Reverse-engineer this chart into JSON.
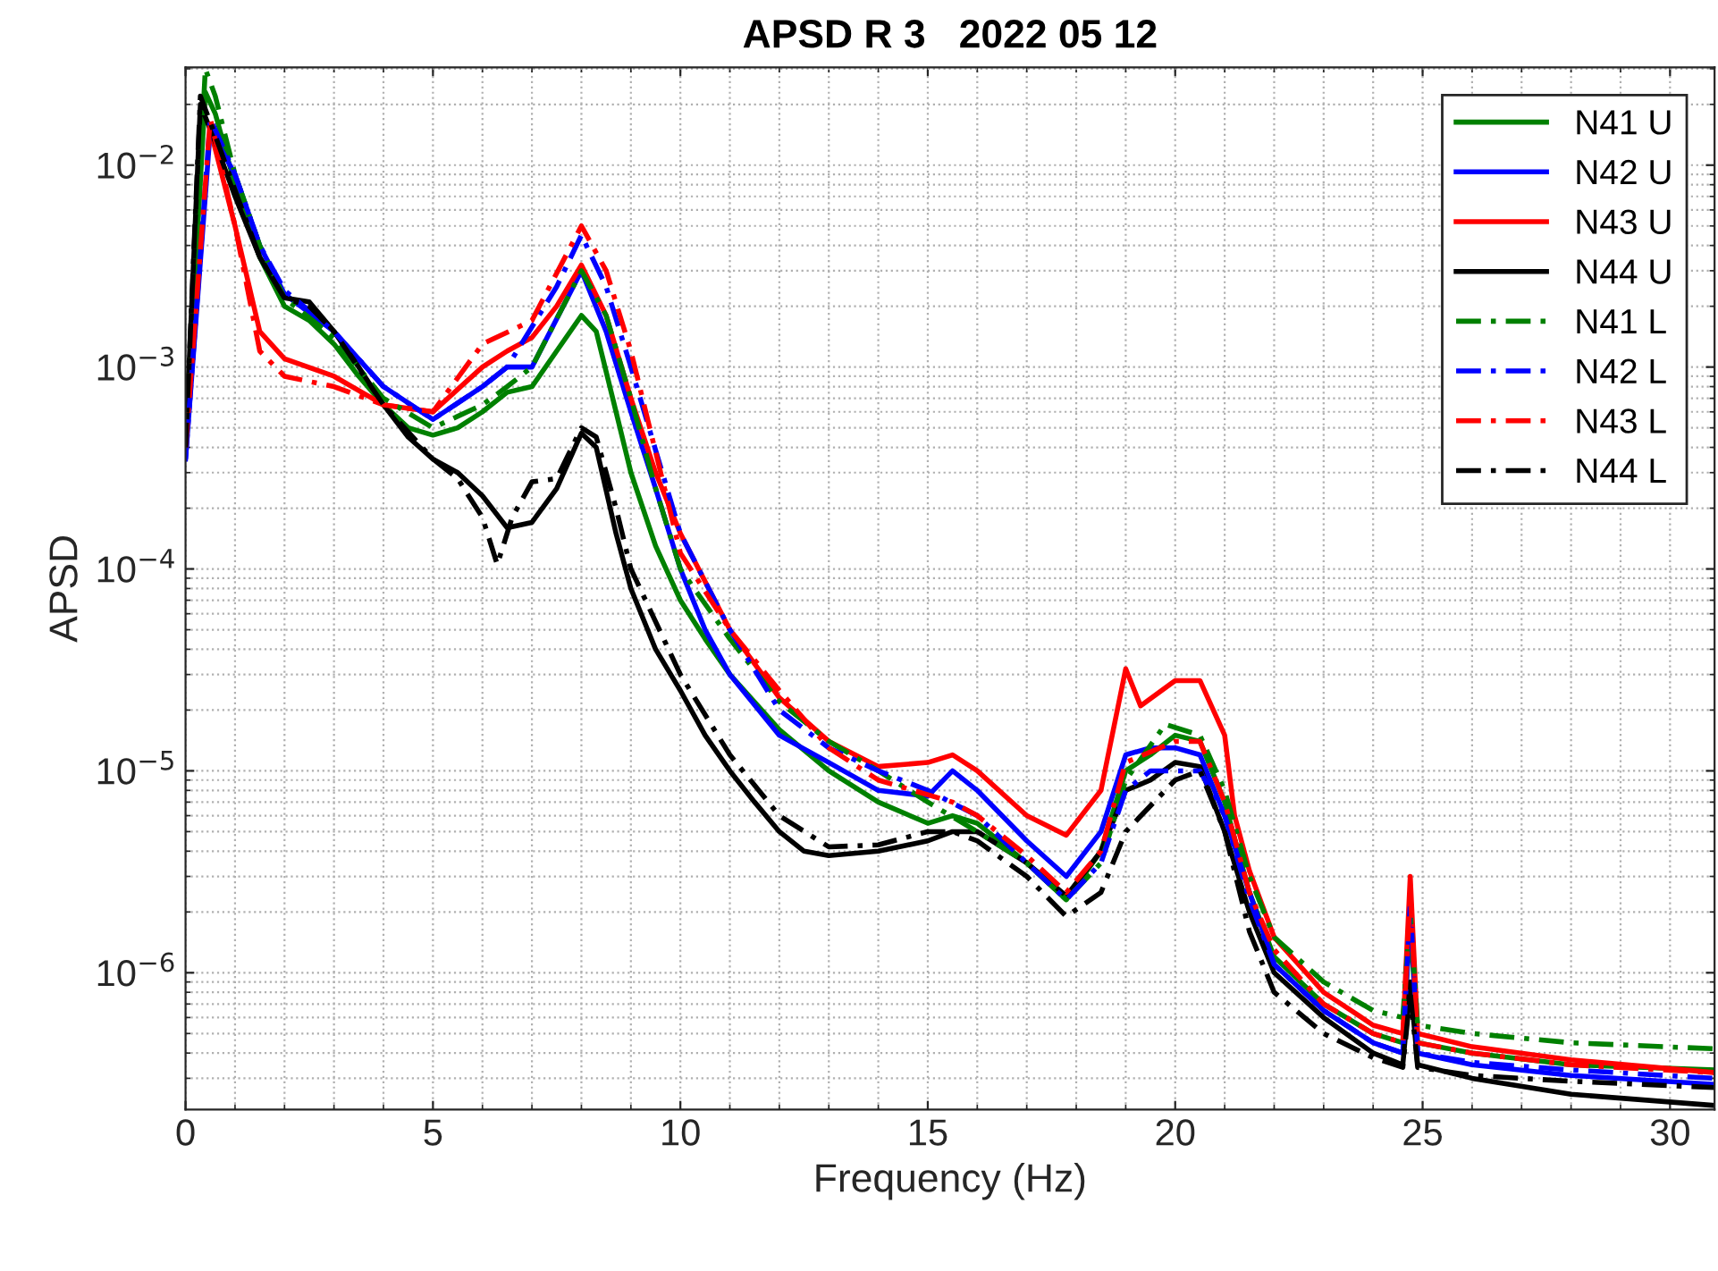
{
  "chart_data": {
    "type": "line",
    "title": "APSD R 3   2022 05 12",
    "xlabel": "Frequency (Hz)",
    "ylabel": "APSD",
    "log": "y",
    "xlim": [
      0,
      30.9
    ],
    "xticks": [
      0,
      5,
      10,
      15,
      20,
      25,
      30
    ],
    "ylim": [
      2.1e-07,
      0.0305
    ],
    "yticks": [
      {
        "value": 1e-06,
        "label": "10$^{−6}$"
      },
      {
        "value": 1e-05,
        "label": "10$^{−5}$"
      },
      {
        "value": 0.0001,
        "label": "10$^{−4}$"
      },
      {
        "value": 0.001,
        "label": "10$^{−3}$"
      },
      {
        "value": 0.01,
        "label": "10$^{−2}$"
      }
    ],
    "grid": true,
    "legend": "top right",
    "marker": "none",
    "series": [
      {
        "name": "N41 U",
        "color": "#008000",
        "line_style": "solid",
        "x": [
          0,
          0.4,
          0.6,
          1,
          1.5,
          2,
          2.5,
          3,
          3.5,
          4,
          4.5,
          5,
          5.5,
          6,
          6.5,
          7,
          7.5,
          8,
          8.3,
          8.7,
          9,
          9.5,
          10,
          10.5,
          11,
          12,
          13,
          14,
          15,
          15.5,
          16,
          17,
          17.8,
          18.5,
          19,
          19.5,
          20,
          20.5,
          21,
          21.5,
          22,
          23,
          24,
          24.6,
          24.75,
          24.9,
          26,
          28,
          30.9
        ],
        "values": [
          0.0004,
          0.023,
          0.018,
          0.008,
          0.0035,
          0.002,
          0.0017,
          0.0013,
          0.0009,
          0.00065,
          0.0005,
          0.00046,
          0.0005,
          0.0006,
          0.00075,
          0.0008,
          0.0012,
          0.0018,
          0.0015,
          0.0006,
          0.0003,
          0.00013,
          7e-05,
          4.5e-05,
          3e-05,
          1.6e-05,
          1e-05,
          7e-06,
          5.5e-06,
          6e-06,
          5.5e-06,
          3.5e-06,
          2.3e-06,
          4e-06,
          1e-05,
          1.2e-05,
          1.5e-05,
          1.4e-05,
          7e-06,
          2.5e-06,
          1.2e-06,
          7e-07,
          5e-07,
          4.5e-07,
          1.8e-06,
          4.5e-07,
          4e-07,
          3.5e-07,
          3.3e-07
        ]
      },
      {
        "name": "N42 U",
        "color": "#0000ff",
        "line_style": "solid",
        "x": [
          0,
          0.5,
          1,
          1.5,
          2,
          3,
          4,
          5,
          6,
          6.5,
          7,
          8,
          8.5,
          9,
          9.5,
          10,
          10.5,
          11,
          12,
          13,
          14,
          15,
          15.5,
          16,
          17,
          17.8,
          18.5,
          19,
          19.5,
          20,
          20.5,
          21,
          21.5,
          22,
          23,
          24,
          24.6,
          24.75,
          24.9,
          26,
          28,
          30.9
        ],
        "values": [
          0.00035,
          0.015,
          0.009,
          0.004,
          0.0023,
          0.0015,
          0.0008,
          0.00055,
          0.0008,
          0.001,
          0.001,
          0.003,
          0.0015,
          0.0006,
          0.00025,
          0.0001,
          5e-05,
          3e-05,
          1.5e-05,
          1.1e-05,
          8e-06,
          7.5e-06,
          1e-05,
          8e-06,
          4.5e-06,
          3e-06,
          5e-06,
          1.2e-05,
          1.3e-05,
          1.3e-05,
          1.2e-05,
          6e-06,
          2.5e-06,
          1.1e-06,
          6.5e-07,
          4.5e-07,
          4e-07,
          2.3e-06,
          4e-07,
          3.5e-07,
          3.1e-07,
          2.8e-07
        ]
      },
      {
        "name": "N43 U",
        "color": "#ff0000",
        "line_style": "solid",
        "x": [
          0.5,
          1,
          1.5,
          2,
          3,
          4,
          5,
          6,
          6.5,
          7,
          7.5,
          8,
          8.5,
          9,
          9.5,
          10,
          11,
          12,
          13,
          14,
          15,
          15.5,
          16,
          17,
          17.8,
          18.5,
          19,
          19.3,
          20,
          20.5,
          21,
          21.2,
          21.5,
          22,
          23,
          24,
          24.6,
          24.75,
          24.9,
          26,
          28,
          30.9
        ],
        "values": [
          0.015,
          0.005,
          0.0015,
          0.0011,
          0.0009,
          0.00065,
          0.0006,
          0.001,
          0.0012,
          0.0014,
          0.002,
          0.0032,
          0.0018,
          0.0007,
          0.0003,
          0.00015,
          5e-05,
          2.3e-05,
          1.4e-05,
          1.05e-05,
          1.1e-05,
          1.2e-05,
          1e-05,
          6e-06,
          4.8e-06,
          8e-06,
          3.2e-05,
          2.1e-05,
          2.8e-05,
          2.8e-05,
          1.5e-05,
          6e-06,
          3.2e-06,
          1.5e-06,
          8e-07,
          5.5e-07,
          5e-07,
          3e-06,
          5e-07,
          4.3e-07,
          3.7e-07,
          3.2e-07
        ]
      },
      {
        "name": "N44 U",
        "color": "#000000",
        "line_style": "solid",
        "x": [
          0,
          0.3,
          0.6,
          1,
          1.5,
          2,
          2.5,
          3,
          3.5,
          4,
          4.5,
          5,
          5.5,
          6,
          6.5,
          7,
          7.5,
          8,
          8.3,
          8.7,
          9,
          9.5,
          10,
          10.5,
          11,
          11.5,
          12,
          12.5,
          13,
          14,
          15,
          15.5,
          16,
          17,
          17.8,
          18.5,
          19,
          19.5,
          20,
          20.5,
          21,
          21.5,
          22,
          23,
          24,
          24.6,
          24.75,
          24.9,
          26,
          28,
          30.9
        ],
        "values": [
          0.0004,
          0.02,
          0.013,
          0.007,
          0.0035,
          0.0022,
          0.0021,
          0.0015,
          0.001,
          0.00065,
          0.00045,
          0.00035,
          0.0003,
          0.00023,
          0.00016,
          0.00017,
          0.00025,
          0.00047,
          0.0004,
          0.00015,
          8e-05,
          4e-05,
          2.5e-05,
          1.5e-05,
          1e-05,
          7e-06,
          5e-06,
          4e-06,
          3.8e-06,
          4e-06,
          4.5e-06,
          5e-06,
          5e-06,
          3.5e-06,
          2.4e-06,
          4e-06,
          8e-06,
          9e-06,
          1.1e-05,
          1.05e-05,
          5e-06,
          2e-06,
          1e-06,
          6e-07,
          4e-07,
          3.5e-07,
          9e-07,
          3.5e-07,
          3e-07,
          2.5e-07,
          2.2e-07
        ]
      },
      {
        "name": "N41 L",
        "color": "#008000",
        "line_style": "dashed",
        "x": [
          0,
          0.4,
          0.6,
          1,
          1.5,
          2,
          3,
          4,
          5,
          6,
          6.5,
          7,
          8,
          8.5,
          9,
          9.5,
          10,
          11,
          12,
          13,
          14,
          15,
          16,
          17,
          17.8,
          18.5,
          19,
          19.8,
          20.5,
          21,
          21.5,
          22,
          23,
          24,
          24.6,
          24.75,
          24.9,
          26,
          28,
          30.9
        ],
        "values": [
          0.0004,
          0.03,
          0.022,
          0.009,
          0.004,
          0.0022,
          0.0014,
          0.0007,
          0.0005,
          0.00065,
          0.0008,
          0.001,
          0.003,
          0.0018,
          0.0007,
          0.00025,
          0.0001,
          4.5e-05,
          2.2e-05,
          1.4e-05,
          1e-05,
          7e-06,
          5e-06,
          3.5e-06,
          2.3e-06,
          3.5e-06,
          9e-06,
          1.7e-05,
          1.5e-05,
          8e-06,
          3e-06,
          1.5e-06,
          9e-07,
          6.5e-07,
          6e-07,
          2e-06,
          5.5e-07,
          5e-07,
          4.5e-07,
          4.2e-07
        ]
      },
      {
        "name": "N42 L",
        "color": "#0000ff",
        "line_style": "dashed",
        "x": [
          0,
          0.5,
          1,
          1.5,
          2,
          3,
          4,
          5,
          6,
          6.5,
          7.5,
          8,
          8.5,
          9,
          10,
          11,
          12,
          13,
          14,
          15,
          16,
          17,
          17.8,
          18.5,
          19,
          19.5,
          20,
          20.5,
          21,
          21.5,
          22,
          23,
          24,
          24.6,
          24.75,
          24.9,
          26,
          28,
          30.9
        ],
        "values": [
          0.00035,
          0.017,
          0.009,
          0.004,
          0.0024,
          0.0015,
          0.0008,
          0.00055,
          0.0008,
          0.001,
          0.0025,
          0.0045,
          0.0025,
          0.001,
          0.00015,
          5e-05,
          2e-05,
          1.3e-05,
          1e-05,
          8e-06,
          6e-06,
          3.5e-06,
          2.3e-06,
          3.5e-06,
          8e-06,
          1e-05,
          1e-05,
          1e-05,
          6e-06,
          2.3e-06,
          1.1e-06,
          6.5e-07,
          4.5e-07,
          4e-07,
          2.2e-06,
          4e-07,
          3.6e-07,
          3.3e-07,
          3e-07
        ]
      },
      {
        "name": "N43 L",
        "color": "#ff0000",
        "line_style": "dashed",
        "x": [
          0,
          0.5,
          1,
          1.5,
          2,
          3,
          4,
          5,
          6,
          7,
          8,
          8.5,
          9,
          10,
          11,
          12,
          13,
          14,
          15.5,
          16,
          17,
          17.8,
          18.5,
          19,
          20,
          20.5,
          21,
          21.5,
          22,
          23,
          24,
          24.6,
          24.75,
          24.9,
          26,
          28,
          30.9
        ],
        "values": [
          0.0004,
          0.017,
          0.005,
          0.0012,
          0.0009,
          0.0008,
          0.00065,
          0.0006,
          0.0013,
          0.0017,
          0.005,
          0.003,
          0.0012,
          0.00012,
          5e-05,
          2.5e-05,
          1.3e-05,
          9e-06,
          7e-06,
          6e-06,
          3.8e-06,
          2.5e-06,
          4e-06,
          1.1e-05,
          1.4e-05,
          1.4e-05,
          7e-06,
          2.5e-06,
          1.3e-06,
          7e-07,
          5e-07,
          4.5e-07,
          2.5e-06,
          4.5e-07,
          4e-07,
          3.5e-07,
          3.2e-07
        ]
      },
      {
        "name": "N44 L",
        "color": "#000000",
        "line_style": "dashed",
        "x": [
          0,
          0.3,
          0.6,
          1,
          1.5,
          2,
          2.5,
          3,
          4,
          5,
          5.5,
          6,
          6.3,
          6.6,
          7,
          7.5,
          8,
          8.3,
          8.7,
          9,
          10,
          11,
          12,
          13,
          14,
          15,
          15.5,
          16,
          17,
          17.8,
          18.5,
          19,
          20,
          20.5,
          21,
          21.5,
          22,
          23,
          24,
          24.6,
          24.75,
          24.9,
          26,
          28,
          30.9
        ],
        "values": [
          0.0004,
          0.022,
          0.014,
          0.0075,
          0.0035,
          0.0022,
          0.002,
          0.0015,
          0.00065,
          0.00035,
          0.00028,
          0.00018,
          0.000105,
          0.00018,
          0.00027,
          0.00028,
          0.0005,
          0.00045,
          0.0002,
          0.0001,
          3e-05,
          1.2e-05,
          6e-06,
          4.2e-06,
          4.3e-06,
          5e-06,
          5e-06,
          4.5e-06,
          3e-06,
          1.9e-06,
          2.5e-06,
          5e-06,
          9e-06,
          1e-05,
          5e-06,
          1.6e-06,
          8e-07,
          5e-07,
          3.8e-07,
          3.4e-07,
          8e-07,
          3.4e-07,
          3.1e-07,
          2.9e-07,
          2.7e-07
        ]
      }
    ]
  }
}
